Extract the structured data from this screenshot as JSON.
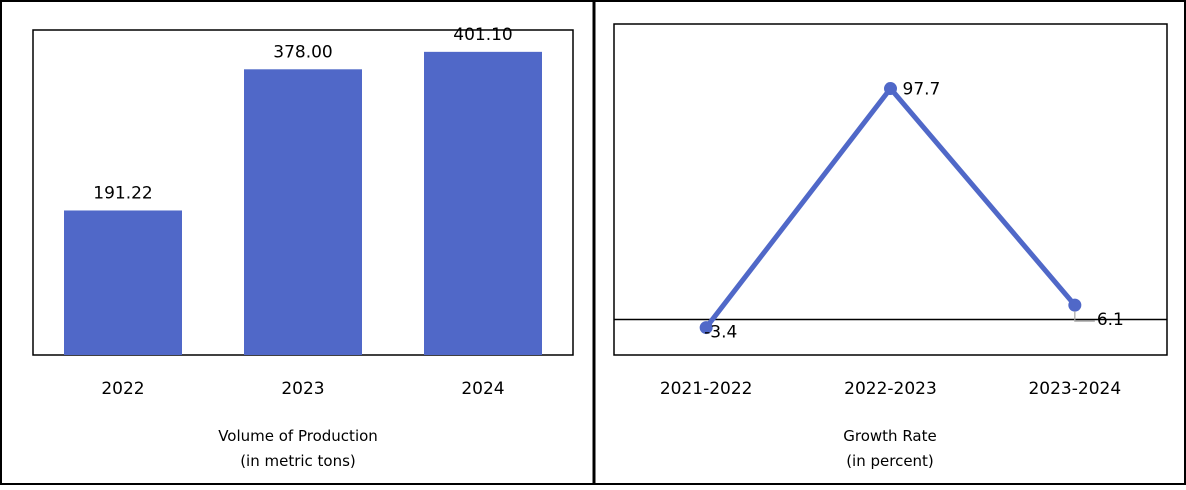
{
  "colors": {
    "series": "#5068C8",
    "frame": "#000000",
    "background": "#ffffff"
  },
  "chart_data": [
    {
      "type": "bar",
      "categories": [
        "2022",
        "2023",
        "2024"
      ],
      "values": [
        191.22,
        378.0,
        401.1
      ],
      "data_labels": [
        "191.22",
        "378.00",
        "401.10"
      ],
      "ylim": [
        0,
        430
      ],
      "grid": false,
      "caption_lines": [
        "Volume of Production",
        "(in metric tons)"
      ]
    },
    {
      "type": "line",
      "categories": [
        "2021-2022",
        "2022-2023",
        "2023-2024"
      ],
      "values": [
        -3.4,
        97.7,
        6.1
      ],
      "data_labels": [
        "-3.4",
        "97.7",
        "6.1"
      ],
      "ylim": [
        -15,
        125
      ],
      "zero_line": true,
      "grid": false,
      "caption_lines": [
        "Growth Rate",
        "(in percent)"
      ]
    }
  ]
}
